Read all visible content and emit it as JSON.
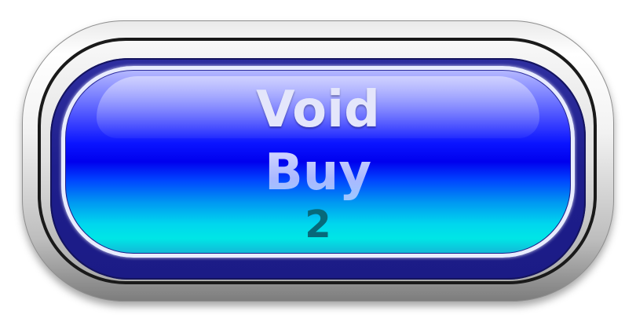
{
  "button": {
    "action_label": "Void",
    "type_label": "Buy",
    "count_label": "2"
  },
  "colors": {
    "face_top": "#b5b8ff",
    "face_mid": "#0000ee",
    "face_bottom": "#00e6e6",
    "rim": "#1e1e8c",
    "count_text": "#07697a"
  }
}
